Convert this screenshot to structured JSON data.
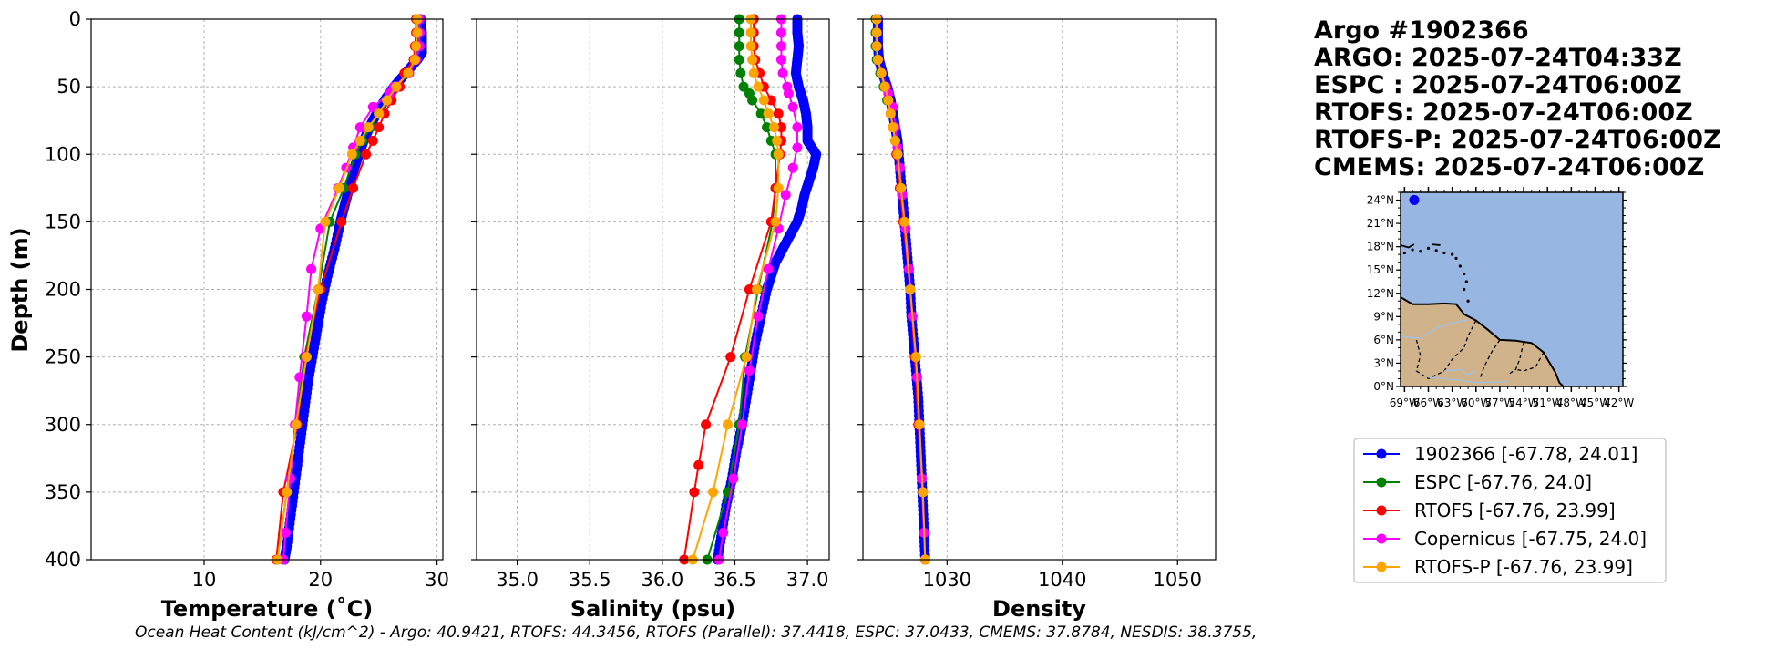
{
  "header": {
    "title_lines": [
      "Argo #1902366",
      "ARGO: 2025-07-24T04:33Z",
      "ESPC : 2025-07-24T06:00Z",
      "RTOFS: 2025-07-24T06:00Z",
      "RTOFS-P: 2025-07-24T06:00Z",
      "CMEMS: 2025-07-24T06:00Z"
    ]
  },
  "footer": {
    "ohc_text": "Ocean Heat Content (kJ/cm^2) - Argo: 40.9421,  RTOFS: 44.3456,  RTOFS (Parallel): 37.4418,  ESPC: 37.0433,  CMEMS: 37.8784,  NESDIS: 38.3755,"
  },
  "colors": {
    "argo": "#0000ff",
    "espc": "#008000",
    "rtofs": "#ff0000",
    "copernicus": "#ff00ff",
    "rtofsp": "#ffa500",
    "ocean": "#97b6e1",
    "land": "#d0b38b",
    "grid": "#b0b0b0"
  },
  "legend": [
    {
      "key": "argo",
      "label": "1902366 [-67.78, 24.01]"
    },
    {
      "key": "espc",
      "label": "ESPC [-67.76, 24.0]"
    },
    {
      "key": "rtofs",
      "label": "RTOFS [-67.76, 23.99]"
    },
    {
      "key": "copernicus",
      "label": "Copernicus [-67.75, 24.0]"
    },
    {
      "key": "rtofsp",
      "label": "RTOFS-P [-67.76, 23.99]"
    }
  ],
  "map": {
    "float_lon": -67.78,
    "float_lat": 24.01,
    "lat_ticks": [
      "24°N",
      "21°N",
      "18°N",
      "15°N",
      "12°N",
      "9°N",
      "6°N",
      "3°N",
      "0°N"
    ],
    "lat_values": [
      24,
      21,
      18,
      15,
      12,
      9,
      6,
      3,
      0
    ],
    "lon_ticks": [
      "69°W",
      "66°W",
      "63°W",
      "60°W",
      "57°W",
      "54°W",
      "51°W",
      "48°W",
      "45°W",
      "42°W"
    ],
    "lon_values": [
      -69,
      -66,
      -63,
      -60,
      -57,
      -54,
      -51,
      -48,
      -45,
      -42
    ],
    "lon_range": [
      -69.5,
      -41.5
    ],
    "lat_range": [
      0,
      25
    ]
  },
  "chart_data": [
    {
      "type": "line",
      "title": "",
      "xlabel": "Temperature (˚C)",
      "ylabel": "Depth (m)",
      "xlim": [
        0.3,
        30.5
      ],
      "ylim": [
        400,
        0
      ],
      "xticks": [
        10,
        20,
        30
      ],
      "yticks": [
        0,
        50,
        100,
        150,
        200,
        250,
        300,
        350,
        400
      ],
      "grid": true,
      "series": [
        {
          "name": "1902366",
          "key": "argo",
          "dense": true,
          "depth": [
            0,
            10,
            20,
            25,
            30,
            40,
            50,
            60,
            70,
            80,
            90,
            100,
            110,
            120,
            130,
            140,
            150,
            170,
            190,
            210,
            230,
            250,
            270,
            290,
            310,
            330,
            350,
            370,
            390,
            400
          ],
          "values": [
            28.6,
            28.7,
            28.7,
            28.7,
            28.3,
            27.3,
            26.3,
            25.5,
            24.8,
            24.2,
            23.7,
            23.3,
            22.9,
            22.6,
            22.3,
            22.0,
            21.7,
            21.2,
            20.6,
            20.1,
            19.7,
            19.3,
            18.9,
            18.6,
            18.3,
            18.0,
            17.7,
            17.4,
            17.1,
            16.9
          ]
        },
        {
          "name": "ESPC",
          "key": "espc",
          "dense": false,
          "depth": [
            0,
            10,
            20,
            30,
            40,
            50,
            60,
            70,
            80,
            90,
            100,
            125,
            150,
            200,
            250,
            300,
            350,
            400
          ],
          "values": [
            28.4,
            28.4,
            28.4,
            28.2,
            27.6,
            26.5,
            25.9,
            25.0,
            24.3,
            23.6,
            23.0,
            22.0,
            20.8,
            19.8,
            18.6,
            17.9,
            17.1,
            16.3
          ]
        },
        {
          "name": "RTOFS",
          "key": "rtofs",
          "dense": false,
          "depth": [
            0,
            10,
            20,
            30,
            40,
            50,
            60,
            70,
            80,
            90,
            100,
            125,
            150,
            200,
            250,
            300,
            350,
            400
          ],
          "values": [
            28.2,
            28.2,
            28.1,
            28.0,
            27.2,
            26.8,
            26.1,
            25.5,
            25.0,
            24.5,
            23.9,
            22.8,
            21.8,
            20.0,
            18.7,
            18.0,
            16.8,
            16.2
          ]
        },
        {
          "name": "Copernicus",
          "key": "copernicus",
          "dense": false,
          "depth": [
            0,
            10,
            20,
            30,
            40,
            50,
            55,
            65,
            80,
            95,
            110,
            125,
            155,
            185,
            220,
            265,
            300,
            340,
            380,
            400
          ],
          "values": [
            28.5,
            28.5,
            28.5,
            28.2,
            27.6,
            26.3,
            25.9,
            24.5,
            23.4,
            22.8,
            22.2,
            21.5,
            20.0,
            19.2,
            18.8,
            18.2,
            17.8,
            17.4,
            17.0,
            16.8
          ]
        },
        {
          "name": "RTOFS-P",
          "key": "rtofsp",
          "dense": false,
          "depth": [
            0,
            10,
            20,
            30,
            40,
            50,
            60,
            70,
            80,
            90,
            100,
            125,
            150,
            200,
            250,
            300,
            350,
            400
          ],
          "values": [
            28.3,
            28.3,
            28.2,
            28.1,
            27.5,
            26.5,
            25.7,
            25.0,
            24.1,
            23.4,
            22.7,
            21.6,
            20.4,
            19.8,
            18.8,
            17.9,
            17.1,
            16.3
          ]
        }
      ]
    },
    {
      "type": "line",
      "title": "",
      "xlabel": "Salinity (psu)",
      "ylabel": "",
      "xlim": [
        34.72,
        37.15
      ],
      "ylim": [
        400,
        0
      ],
      "xticks": [
        35.0,
        35.5,
        36.0,
        36.5,
        37.0
      ],
      "tick_labels": [
        "35.0",
        "35.5",
        "36.0",
        "36.5",
        "37.0"
      ],
      "yticks": [
        0,
        50,
        100,
        150,
        200,
        250,
        300,
        350,
        400
      ],
      "grid": true,
      "series": [
        {
          "name": "1902366",
          "key": "argo",
          "dense": true,
          "depth": [
            0,
            10,
            20,
            30,
            40,
            50,
            60,
            70,
            80,
            90,
            100,
            110,
            120,
            130,
            140,
            150,
            160,
            170,
            180,
            190,
            200,
            220,
            240,
            260,
            280,
            300,
            320,
            340,
            360,
            380,
            400
          ],
          "values": [
            36.93,
            36.93,
            36.94,
            36.93,
            36.92,
            36.94,
            36.97,
            36.99,
            37.0,
            37.0,
            37.06,
            37.04,
            37.01,
            36.98,
            36.96,
            36.93,
            36.88,
            36.83,
            36.78,
            36.75,
            36.72,
            36.68,
            36.64,
            36.61,
            36.58,
            36.55,
            36.51,
            36.48,
            36.44,
            36.41,
            36.38
          ]
        },
        {
          "name": "ESPC",
          "key": "espc",
          "dense": false,
          "depth": [
            0,
            10,
            20,
            30,
            40,
            50,
            55,
            60,
            70,
            80,
            90,
            100,
            125,
            150,
            200,
            250,
            300,
            350,
            400
          ],
          "values": [
            36.53,
            36.53,
            36.53,
            36.53,
            36.54,
            36.56,
            36.6,
            36.62,
            36.68,
            36.72,
            36.75,
            36.78,
            36.78,
            36.76,
            36.66,
            36.57,
            36.53,
            36.45,
            36.31
          ]
        },
        {
          "name": "RTOFS",
          "key": "rtofs",
          "dense": false,
          "depth": [
            0,
            10,
            20,
            30,
            40,
            50,
            60,
            70,
            80,
            90,
            100,
            125,
            150,
            200,
            250,
            300,
            330,
            350,
            400
          ],
          "values": [
            36.63,
            36.63,
            36.63,
            36.64,
            36.67,
            36.7,
            36.75,
            36.8,
            36.82,
            36.82,
            36.81,
            36.78,
            36.75,
            36.6,
            36.47,
            36.3,
            36.25,
            36.22,
            36.15
          ]
        },
        {
          "name": "Copernicus",
          "key": "copernicus",
          "dense": false,
          "depth": [
            0,
            10,
            20,
            30,
            40,
            50,
            55,
            65,
            80,
            95,
            110,
            130,
            155,
            185,
            220,
            260,
            300,
            340,
            380,
            400
          ],
          "values": [
            36.82,
            36.82,
            36.82,
            36.82,
            36.83,
            36.86,
            36.87,
            36.9,
            36.93,
            36.93,
            36.9,
            36.85,
            36.8,
            36.73,
            36.66,
            36.6,
            36.55,
            36.49,
            36.42,
            36.39
          ]
        },
        {
          "name": "RTOFS-P",
          "key": "rtofsp",
          "dense": false,
          "depth": [
            0,
            10,
            20,
            30,
            40,
            50,
            60,
            70,
            80,
            90,
            100,
            125,
            150,
            200,
            250,
            300,
            350,
            400
          ],
          "values": [
            36.61,
            36.61,
            36.61,
            36.62,
            36.63,
            36.66,
            36.7,
            36.73,
            36.77,
            36.79,
            36.8,
            36.8,
            36.78,
            36.65,
            36.58,
            36.45,
            36.35,
            36.21
          ]
        }
      ]
    },
    {
      "type": "line",
      "title": "",
      "xlabel": "Density",
      "ylabel": "",
      "xlim": [
        1022.7,
        1053.3
      ],
      "ylim": [
        400,
        0
      ],
      "xticks": [
        1030,
        1040,
        1050
      ],
      "yticks": [
        0,
        50,
        100,
        150,
        200,
        250,
        300,
        350,
        400
      ],
      "grid": true,
      "series": [
        {
          "name": "1902366",
          "key": "argo",
          "dense": true,
          "depth": [
            0,
            10,
            20,
            30,
            40,
            50,
            60,
            70,
            80,
            90,
            100,
            120,
            140,
            160,
            180,
            200,
            220,
            240,
            260,
            280,
            300,
            320,
            340,
            360,
            380,
            400
          ],
          "values": [
            1024.0,
            1024.0,
            1024.0,
            1024.1,
            1024.4,
            1024.8,
            1025.1,
            1025.3,
            1025.5,
            1025.7,
            1025.8,
            1026.0,
            1026.2,
            1026.4,
            1026.6,
            1026.8,
            1026.9,
            1027.1,
            1027.3,
            1027.5,
            1027.6,
            1027.7,
            1027.8,
            1027.9,
            1028.0,
            1028.1
          ]
        },
        {
          "name": "ESPC",
          "key": "espc",
          "dense": false,
          "depth": [
            0,
            10,
            20,
            30,
            40,
            50,
            60,
            70,
            80,
            90,
            100,
            125,
            150,
            200,
            250,
            300,
            350,
            400
          ],
          "values": [
            1023.8,
            1023.8,
            1023.8,
            1023.9,
            1024.2,
            1024.5,
            1024.8,
            1025.1,
            1025.3,
            1025.5,
            1025.7,
            1026.0,
            1026.3,
            1026.8,
            1027.3,
            1027.6,
            1027.9,
            1028.1
          ]
        },
        {
          "name": "RTOFS",
          "key": "rtofs",
          "dense": false,
          "depth": [
            0,
            10,
            20,
            30,
            40,
            50,
            60,
            70,
            80,
            90,
            100,
            125,
            150,
            200,
            250,
            300,
            350,
            400
          ],
          "values": [
            1023.9,
            1023.9,
            1023.9,
            1024.0,
            1024.3,
            1024.6,
            1024.9,
            1025.1,
            1025.3,
            1025.5,
            1025.6,
            1025.9,
            1026.2,
            1026.8,
            1027.2,
            1027.5,
            1027.9,
            1028.1
          ]
        },
        {
          "name": "Copernicus",
          "key": "copernicus",
          "dense": false,
          "depth": [
            0,
            10,
            20,
            30,
            40,
            50,
            55,
            65,
            80,
            95,
            110,
            130,
            155,
            185,
            220,
            265,
            300,
            340,
            380,
            400
          ],
          "values": [
            1023.9,
            1023.9,
            1023.9,
            1024.0,
            1024.3,
            1024.7,
            1024.9,
            1025.3,
            1025.5,
            1025.7,
            1025.9,
            1026.1,
            1026.4,
            1026.7,
            1027.0,
            1027.4,
            1027.6,
            1027.8,
            1028.0,
            1028.1
          ]
        },
        {
          "name": "RTOFS-P",
          "key": "rtofsp",
          "dense": false,
          "depth": [
            0,
            10,
            20,
            30,
            40,
            50,
            60,
            70,
            80,
            90,
            100,
            125,
            150,
            200,
            250,
            300,
            350,
            400
          ],
          "values": [
            1023.9,
            1023.9,
            1023.9,
            1024.0,
            1024.3,
            1024.6,
            1024.9,
            1025.1,
            1025.3,
            1025.5,
            1025.7,
            1026.0,
            1026.3,
            1026.8,
            1027.3,
            1027.6,
            1027.9,
            1028.1
          ]
        }
      ]
    }
  ]
}
